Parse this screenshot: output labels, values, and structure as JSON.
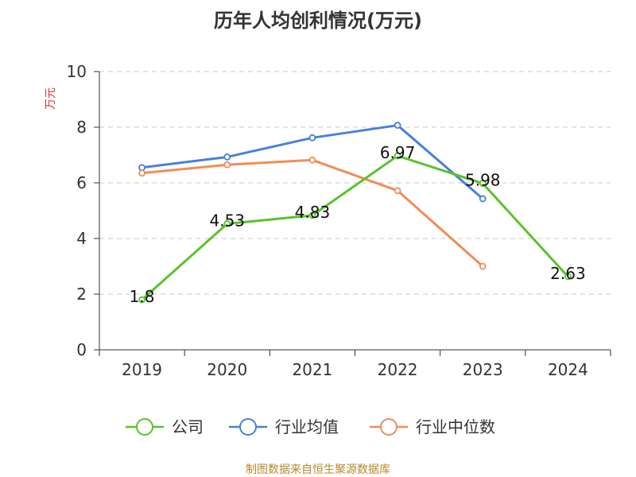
{
  "chart_data": {
    "type": "line",
    "title": "历年人均创利情况(万元)",
    "ylabel": "万元",
    "xlabel": "",
    "categories": [
      "2019",
      "2020",
      "2021",
      "2022",
      "2023",
      "2024"
    ],
    "ylim": [
      0,
      10
    ],
    "yticks": [
      0,
      2,
      4,
      6,
      8,
      10
    ],
    "grid": true,
    "legend_position": "bottom",
    "series": [
      {
        "name": "公司",
        "color": "#5ac22a",
        "values": [
          1.8,
          4.53,
          4.83,
          6.97,
          5.98,
          2.63
        ],
        "labels": [
          "1.8",
          "4.53",
          "4.83",
          "6.97",
          "5.98",
          "2.63"
        ]
      },
      {
        "name": "行业均值",
        "color": "#4a7fdb",
        "values": [
          6.55,
          6.93,
          7.62,
          8.07,
          5.43,
          null
        ]
      },
      {
        "name": "行业中位数",
        "color": "#f08d57",
        "values": [
          6.35,
          6.65,
          6.82,
          5.72,
          3.0,
          null
        ]
      }
    ]
  },
  "footer": {
    "source": "制图数据来自恒生聚源数据库"
  }
}
